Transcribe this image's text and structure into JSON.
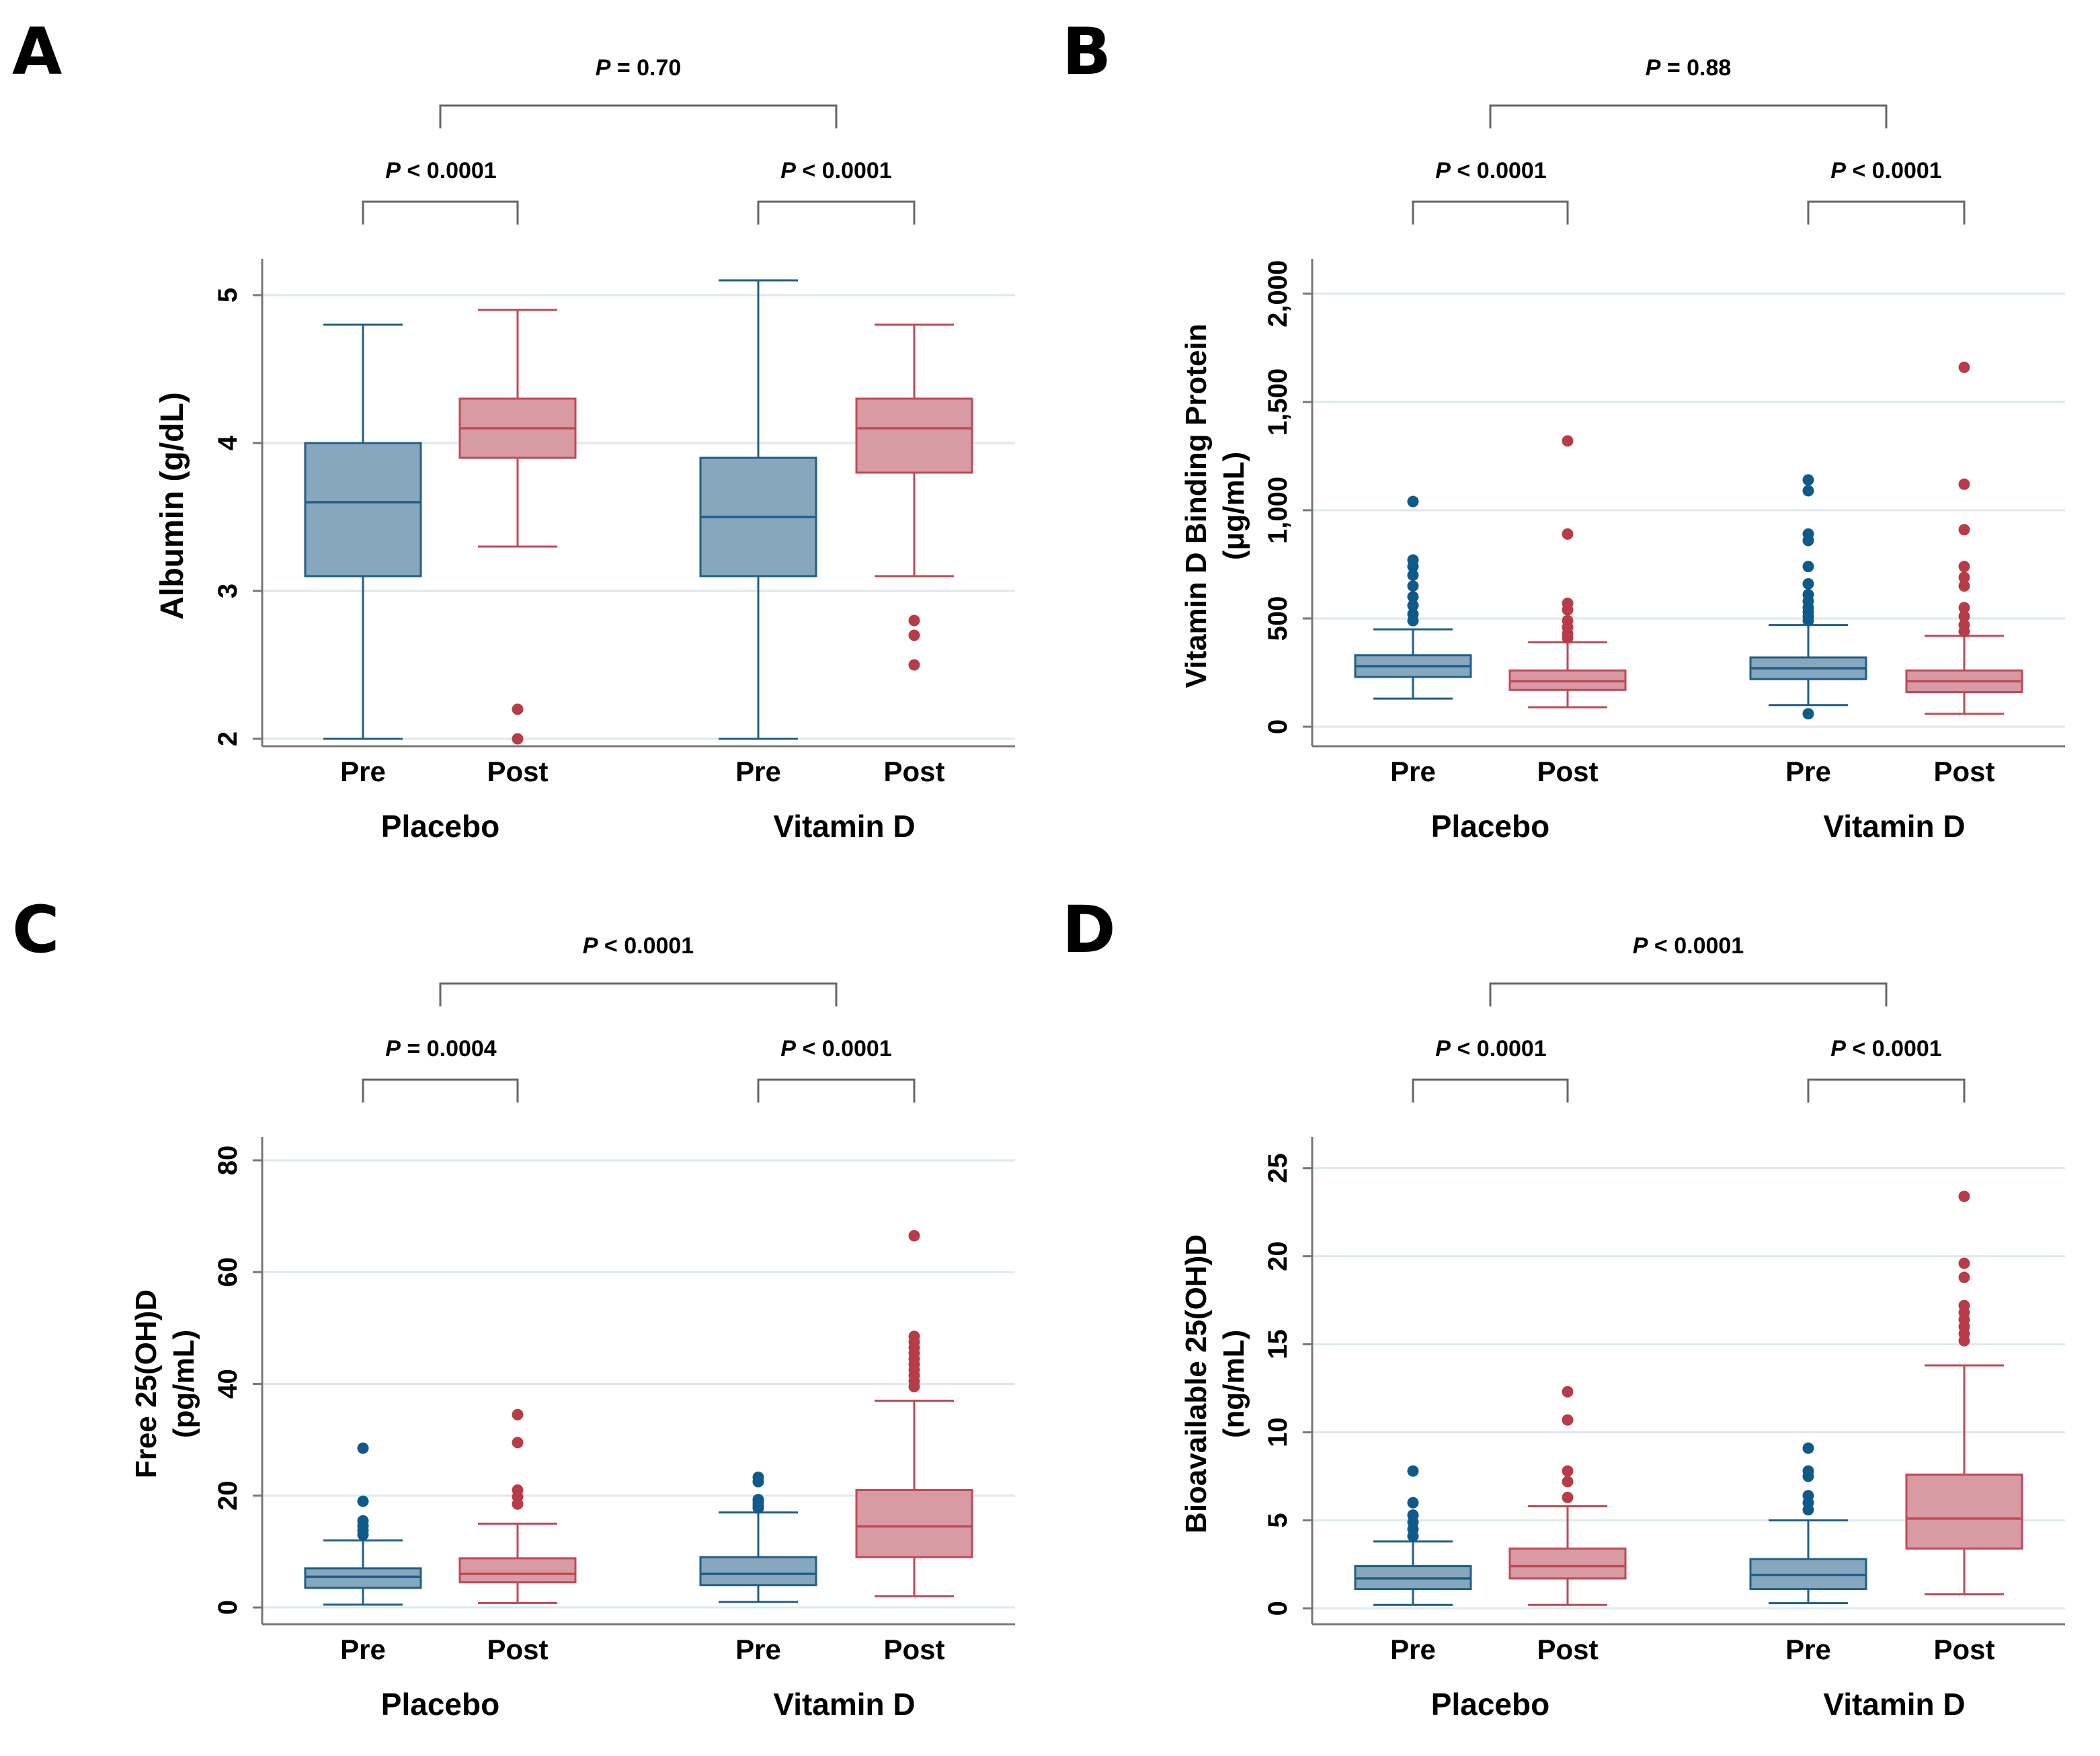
{
  "chart_data": [
    {
      "type": "box",
      "panel": "A",
      "ylabel": [
        "Albumin (g/dL)"
      ],
      "ylim": [
        1.95,
        5.2
      ],
      "yticks": [
        2,
        3,
        4,
        5
      ],
      "ytick_labels": [
        "2",
        "3",
        "4",
        "5"
      ],
      "groups": [
        "Placebo",
        "Vitamin D"
      ],
      "categories": [
        "Pre",
        "Post",
        "Pre",
        "Post"
      ],
      "boxes": [
        {
          "group": "Placebo",
          "label": "Pre",
          "series": "Pre",
          "whisker_low": 2.0,
          "q1": 3.1,
          "median": 3.6,
          "q3": 4.0,
          "whisker_high": 4.8,
          "outliers": []
        },
        {
          "group": "Placebo",
          "label": "Post",
          "series": "Post",
          "whisker_low": 3.3,
          "q1": 3.9,
          "median": 4.1,
          "q3": 4.3,
          "whisker_high": 4.9,
          "outliers": [
            2.2,
            2.0
          ]
        },
        {
          "group": "Vitamin D",
          "label": "Pre",
          "series": "Pre",
          "whisker_low": 2.0,
          "q1": 3.1,
          "median": 3.5,
          "q3": 3.9,
          "whisker_high": 5.1,
          "outliers": []
        },
        {
          "group": "Vitamin D",
          "label": "Post",
          "series": "Post",
          "whisker_low": 3.1,
          "q1": 3.8,
          "median": 4.1,
          "q3": 4.3,
          "whisker_high": 4.8,
          "outliers": [
            2.8,
            2.7,
            2.5
          ]
        }
      ],
      "annotations": [
        {
          "p_label": "P",
          "text": " = 0.70",
          "between": [
            "Placebo",
            "Vitamin D"
          ]
        },
        {
          "p_label": "P",
          "text": " < 0.0001",
          "between": [
            "Placebo Pre",
            "Placebo Post"
          ]
        },
        {
          "p_label": "P",
          "text": " < 0.0001",
          "between": [
            "Vitamin D Pre",
            "Vitamin D Post"
          ]
        }
      ]
    },
    {
      "type": "box",
      "panel": "B",
      "ylabel": [
        "Vitamin D Binding Protein",
        "(μg/mL)"
      ],
      "ylim": [
        -90,
        2130
      ],
      "yticks": [
        0,
        500,
        1000,
        1500,
        2000
      ],
      "ytick_labels": [
        "0",
        "500",
        "1,000",
        "1,500",
        "2,000"
      ],
      "groups": [
        "Placebo",
        "Vitamin D"
      ],
      "categories": [
        "Pre",
        "Post",
        "Pre",
        "Post"
      ],
      "boxes": [
        {
          "group": "Placebo",
          "label": "Pre",
          "series": "Pre",
          "whisker_low": 130,
          "q1": 230,
          "median": 280,
          "q3": 330,
          "whisker_high": 450,
          "outliers": [
            490,
            520,
            560,
            600,
            650,
            700,
            740,
            770,
            1040
          ]
        },
        {
          "group": "Placebo",
          "label": "Post",
          "series": "Post",
          "whisker_low": 90,
          "q1": 170,
          "median": 210,
          "q3": 260,
          "whisker_high": 390,
          "outliers": [
            410,
            430,
            460,
            490,
            540,
            570,
            890,
            1320
          ]
        },
        {
          "group": "Vitamin D",
          "label": "Pre",
          "series": "Pre",
          "whisker_low": 100,
          "q1": 220,
          "median": 270,
          "q3": 320,
          "whisker_high": 470,
          "outliers": [
            60,
            490,
            510,
            530,
            550,
            580,
            610,
            660,
            740,
            860,
            890,
            1090,
            1140
          ]
        },
        {
          "group": "Vitamin D",
          "label": "Post",
          "series": "Post",
          "whisker_low": 60,
          "q1": 160,
          "median": 210,
          "q3": 260,
          "whisker_high": 420,
          "outliers": [
            440,
            470,
            510,
            550,
            650,
            690,
            740,
            910,
            1120,
            1660
          ]
        }
      ],
      "annotations": [
        {
          "p_label": "P",
          "text": " = 0.88",
          "between": [
            "Placebo",
            "Vitamin D"
          ]
        },
        {
          "p_label": "P",
          "text": " < 0.0001",
          "between": [
            "Placebo Pre",
            "Placebo Post"
          ]
        },
        {
          "p_label": "P",
          "text": " < 0.0001",
          "between": [
            "Vitamin D Pre",
            "Vitamin D Post"
          ]
        }
      ]
    },
    {
      "type": "box",
      "panel": "C",
      "ylabel": [
        "Free 25(OH)D",
        "(pg/mL)"
      ],
      "ylim": [
        -3,
        83
      ],
      "yticks": [
        0,
        20,
        40,
        60,
        80
      ],
      "ytick_labels": [
        "0",
        "20",
        "40",
        "60",
        "80"
      ],
      "groups": [
        "Placebo",
        "Vitamin D"
      ],
      "categories": [
        "Pre",
        "Post",
        "Pre",
        "Post"
      ],
      "boxes": [
        {
          "group": "Placebo",
          "label": "Pre",
          "series": "Pre",
          "whisker_low": 0.5,
          "q1": 3.5,
          "median": 5.5,
          "q3": 7.0,
          "whisker_high": 12.0,
          "outliers": [
            13.0,
            13.8,
            14.6,
            15.5,
            19.0,
            28.5
          ]
        },
        {
          "group": "Placebo",
          "label": "Post",
          "series": "Post",
          "whisker_low": 0.8,
          "q1": 4.5,
          "median": 6.0,
          "q3": 8.8,
          "whisker_high": 15.0,
          "outliers": [
            18.5,
            19.8,
            21.0,
            29.5,
            34.5
          ]
        },
        {
          "group": "Vitamin D",
          "label": "Pre",
          "series": "Pre",
          "whisker_low": 1.0,
          "q1": 4.0,
          "median": 6.0,
          "q3": 9.0,
          "whisker_high": 17.0,
          "outliers": [
            17.8,
            18.3,
            18.8,
            19.3,
            22.5,
            23.3
          ]
        },
        {
          "group": "Vitamin D",
          "label": "Post",
          "series": "Post",
          "whisker_low": 2.0,
          "q1": 9.0,
          "median": 14.5,
          "q3": 21.0,
          "whisker_high": 37.0,
          "outliers": [
            39.5,
            40.5,
            41.5,
            42.5,
            43.5,
            44.5,
            45.5,
            46.5,
            47.5,
            48.5,
            66.5
          ]
        }
      ],
      "annotations": [
        {
          "p_label": "P",
          "text": " < 0.0001",
          "between": [
            "Placebo",
            "Vitamin D"
          ]
        },
        {
          "p_label": "P",
          "text": " = 0.0004",
          "between": [
            "Placebo Pre",
            "Placebo Post"
          ]
        },
        {
          "p_label": "P",
          "text": " < 0.0001",
          "between": [
            "Vitamin D Pre",
            "Vitamin D Post"
          ]
        }
      ]
    },
    {
      "type": "box",
      "panel": "D",
      "ylabel": [
        "Bioavailable 25(OH)D",
        "(ng/mL)"
      ],
      "ylim": [
        -0.9,
        26.4
      ],
      "yticks": [
        0,
        5,
        10,
        15,
        20,
        25
      ],
      "ytick_labels": [
        "0",
        "5",
        "10",
        "15",
        "20",
        "25"
      ],
      "groups": [
        "Placebo",
        "Vitamin D"
      ],
      "categories": [
        "Pre",
        "Post",
        "Pre",
        "Post"
      ],
      "boxes": [
        {
          "group": "Placebo",
          "label": "Pre",
          "series": "Pre",
          "whisker_low": 0.2,
          "q1": 1.1,
          "median": 1.7,
          "q3": 2.4,
          "whisker_high": 3.8,
          "outliers": [
            4.1,
            4.5,
            4.9,
            5.3,
            6.0,
            7.8
          ]
        },
        {
          "group": "Placebo",
          "label": "Post",
          "series": "Post",
          "whisker_low": 0.2,
          "q1": 1.7,
          "median": 2.4,
          "q3": 3.4,
          "whisker_high": 5.8,
          "outliers": [
            6.3,
            7.2,
            7.8,
            10.7,
            12.3
          ]
        },
        {
          "group": "Vitamin D",
          "label": "Pre",
          "series": "Pre",
          "whisker_low": 0.3,
          "q1": 1.1,
          "median": 1.9,
          "q3": 2.8,
          "whisker_high": 5.0,
          "outliers": [
            5.6,
            6.0,
            6.4,
            7.5,
            7.8,
            9.1
          ]
        },
        {
          "group": "Vitamin D",
          "label": "Post",
          "series": "Post",
          "whisker_low": 0.8,
          "q1": 3.4,
          "median": 5.1,
          "q3": 7.6,
          "whisker_high": 13.8,
          "outliers": [
            15.2,
            15.6,
            16.0,
            16.4,
            16.8,
            17.2,
            18.8,
            19.6,
            23.4
          ]
        }
      ],
      "annotations": [
        {
          "p_label": "P",
          "text": " < 0.0001",
          "between": [
            "Placebo",
            "Vitamin D"
          ]
        },
        {
          "p_label": "P",
          "text": " < 0.0001",
          "between": [
            "Placebo Pre",
            "Placebo Post"
          ]
        },
        {
          "p_label": "P",
          "text": " < 0.0001",
          "between": [
            "Vitamin D Pre",
            "Vitamin D Post"
          ]
        }
      ]
    }
  ],
  "panels": [
    {
      "letter": "A"
    },
    {
      "letter": "B"
    },
    {
      "letter": "C"
    },
    {
      "letter": "D"
    }
  ],
  "colors": {
    "pre_fill": "#86a7bd",
    "pre_line": "#1f5f87",
    "pre_dot": "#0f5a8a",
    "post_fill": "#d89aa3",
    "post_line": "#bf4a55",
    "post_dot": "#b73c48",
    "grid": "#dde9ee",
    "axis": "#777777",
    "bracket": "#666666"
  }
}
